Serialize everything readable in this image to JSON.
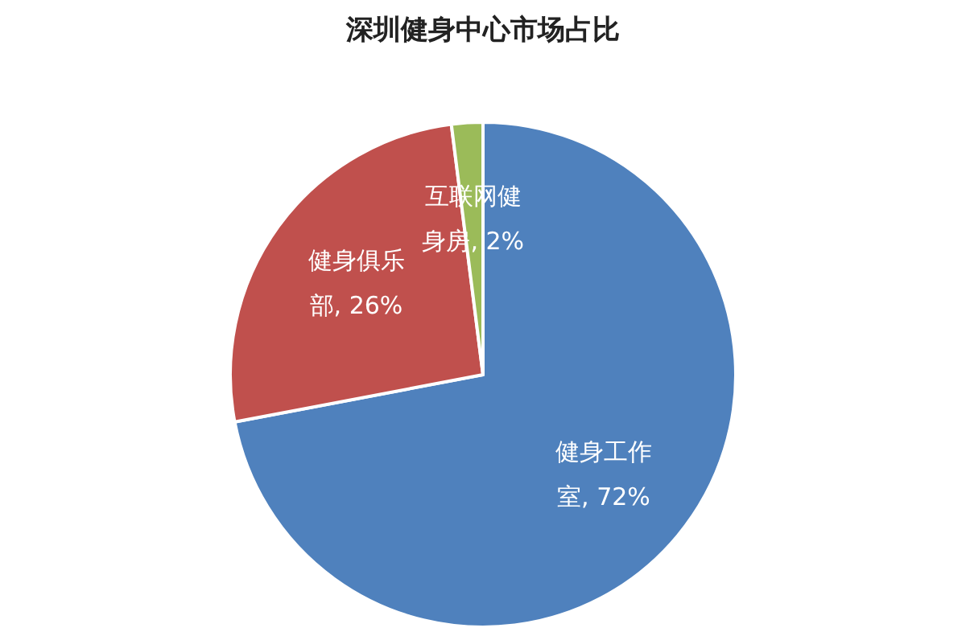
{
  "chart_data": {
    "type": "pie",
    "title": "深圳健身中心市场占比",
    "categories": [
      "健身工作室",
      "健身俱乐部",
      "互联网健身房"
    ],
    "values": [
      72,
      26,
      2
    ],
    "value_labels": [
      "72%",
      "26%",
      "2%"
    ],
    "colors": [
      "#4f81bd",
      "#c0504d",
      "#9bbb59"
    ],
    "legend": false
  }
}
